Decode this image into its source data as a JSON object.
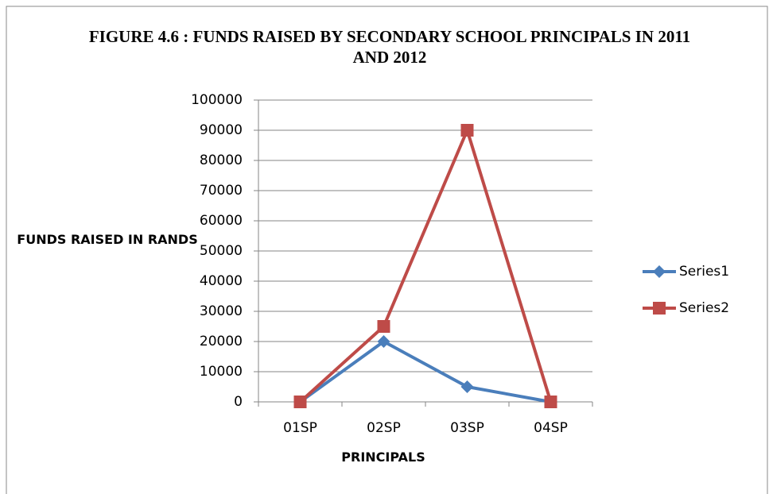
{
  "chart_data": {
    "type": "line",
    "title": "FIGURE 4.6 : FUNDS RAISED BY SECONDARY  SCHOOL PRINCIPALS IN 2011 AND 2012",
    "x_label": "PRINCIPALS",
    "y_label": "FUNDS RAISED IN RANDS",
    "categories": [
      "01SP",
      "02SP",
      "03SP",
      "04SP"
    ],
    "series": [
      {
        "name": "Series1",
        "color": "#4a7ebb",
        "marker": "diamond",
        "values": [
          0,
          20000,
          5000,
          0
        ]
      },
      {
        "name": "Series2",
        "color": "#be4b48",
        "marker": "square",
        "values": [
          0,
          25000,
          90000,
          0
        ]
      }
    ],
    "ylim": [
      0,
      100000
    ],
    "yticks": [
      0,
      10000,
      20000,
      30000,
      40000,
      50000,
      60000,
      70000,
      80000,
      90000,
      100000
    ],
    "grid": true,
    "legend": "right"
  }
}
